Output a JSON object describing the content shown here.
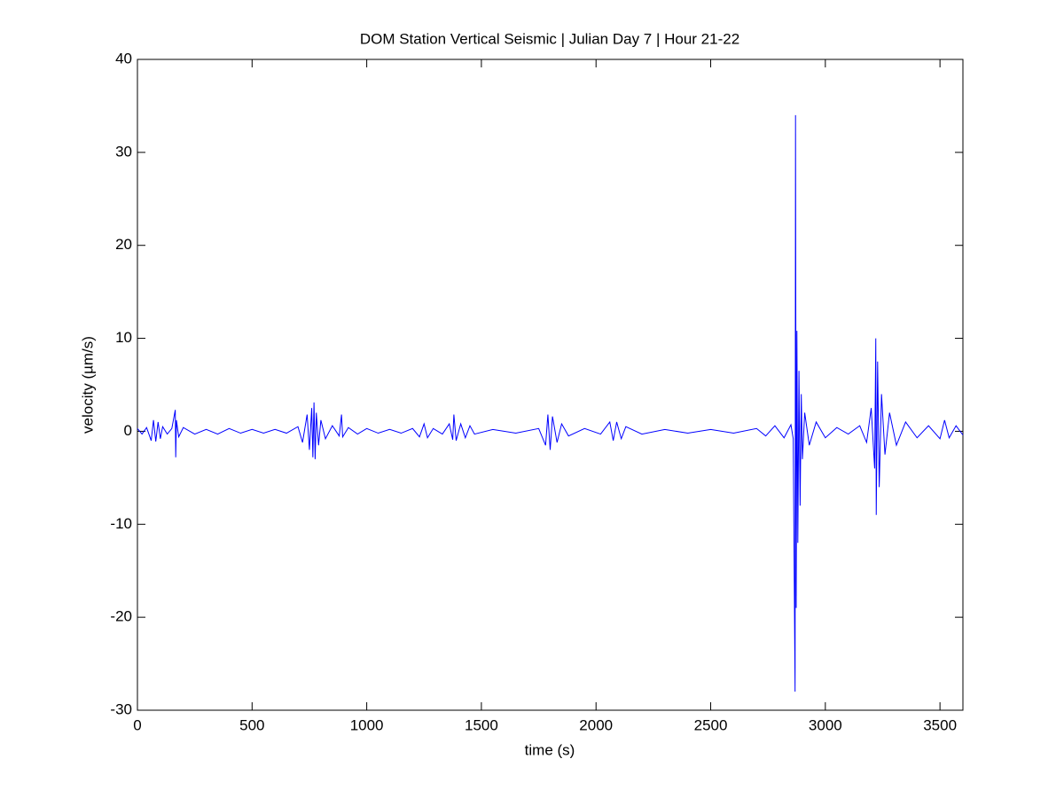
{
  "chart_data": {
    "type": "line",
    "title": "DOM Station Vertical Seismic | Julian Day 7 | Hour 21-22",
    "x_label": "time (s)",
    "y_label": "velocity (µm/s)",
    "xlim": [
      0,
      3600
    ],
    "ylim": [
      -30,
      40
    ],
    "xticks": [
      0,
      500,
      1000,
      1500,
      2000,
      2500,
      3000,
      3500
    ],
    "yticks": [
      -30,
      -20,
      -10,
      0,
      10,
      20,
      30,
      40
    ],
    "grid": false,
    "series": [
      {
        "color": "#0000ff",
        "x": [
          0,
          20,
          40,
          60,
          70,
          80,
          90,
          100,
          110,
          130,
          150,
          165,
          167,
          170,
          180,
          200,
          250,
          300,
          350,
          400,
          450,
          500,
          550,
          600,
          650,
          700,
          720,
          740,
          750,
          760,
          765,
          770,
          775,
          780,
          790,
          800,
          820,
          850,
          880,
          890,
          895,
          920,
          960,
          1000,
          1050,
          1100,
          1150,
          1200,
          1230,
          1250,
          1265,
          1290,
          1330,
          1360,
          1375,
          1380,
          1390,
          1410,
          1430,
          1450,
          1470,
          1550,
          1650,
          1750,
          1780,
          1790,
          1800,
          1810,
          1830,
          1850,
          1880,
          1950,
          2020,
          2060,
          2075,
          2090,
          2110,
          2130,
          2200,
          2300,
          2400,
          2500,
          2600,
          2700,
          2740,
          2780,
          2820,
          2850,
          2860,
          2868,
          2870,
          2873,
          2876,
          2880,
          2885,
          2890,
          2895,
          2900,
          2910,
          2930,
          2960,
          3000,
          3050,
          3100,
          3150,
          3180,
          3200,
          3215,
          3220,
          3222,
          3228,
          3235,
          3245,
          3260,
          3280,
          3310,
          3350,
          3400,
          3450,
          3500,
          3520,
          3540,
          3570,
          3600
        ],
        "values": [
          0.3,
          -0.3,
          0.4,
          -1.0,
          1.2,
          -1.1,
          1.0,
          -0.8,
          0.5,
          -0.3,
          0.3,
          2.3,
          -2.8,
          1.2,
          -0.6,
          0.4,
          -0.3,
          0.2,
          -0.3,
          0.3,
          -0.2,
          0.2,
          -0.2,
          0.2,
          -0.2,
          0.5,
          -1.2,
          1.8,
          -2.0,
          2.5,
          -2.8,
          3.1,
          -3.0,
          2.0,
          -1.5,
          1.2,
          -0.8,
          0.6,
          -0.5,
          1.8,
          -0.6,
          0.4,
          -0.3,
          0.3,
          -0.2,
          0.2,
          -0.2,
          0.3,
          -0.6,
          0.8,
          -0.7,
          0.3,
          -0.3,
          0.8,
          -0.9,
          1.8,
          -1.0,
          0.8,
          -0.7,
          0.6,
          -0.3,
          0.2,
          -0.2,
          0.3,
          -1.5,
          1.8,
          -2.0,
          1.6,
          -1.2,
          0.8,
          -0.5,
          0.3,
          -0.3,
          1.0,
          -1.0,
          1.0,
          -0.8,
          0.5,
          -0.3,
          0.2,
          -0.2,
          0.2,
          -0.2,
          0.3,
          -0.5,
          0.6,
          -0.7,
          0.7,
          -0.8,
          -28,
          34,
          -19,
          10.8,
          -12,
          6.5,
          -8,
          4,
          -3,
          2,
          -1.5,
          1,
          -0.7,
          0.4,
          -0.3,
          0.6,
          -1.2,
          2.5,
          -4,
          10,
          -9,
          7.5,
          -6,
          4,
          -2.5,
          2,
          -1.5,
          1,
          -0.7,
          0.6,
          -0.8,
          1.2,
          -0.7,
          0.6,
          -0.4
        ]
      }
    ]
  }
}
